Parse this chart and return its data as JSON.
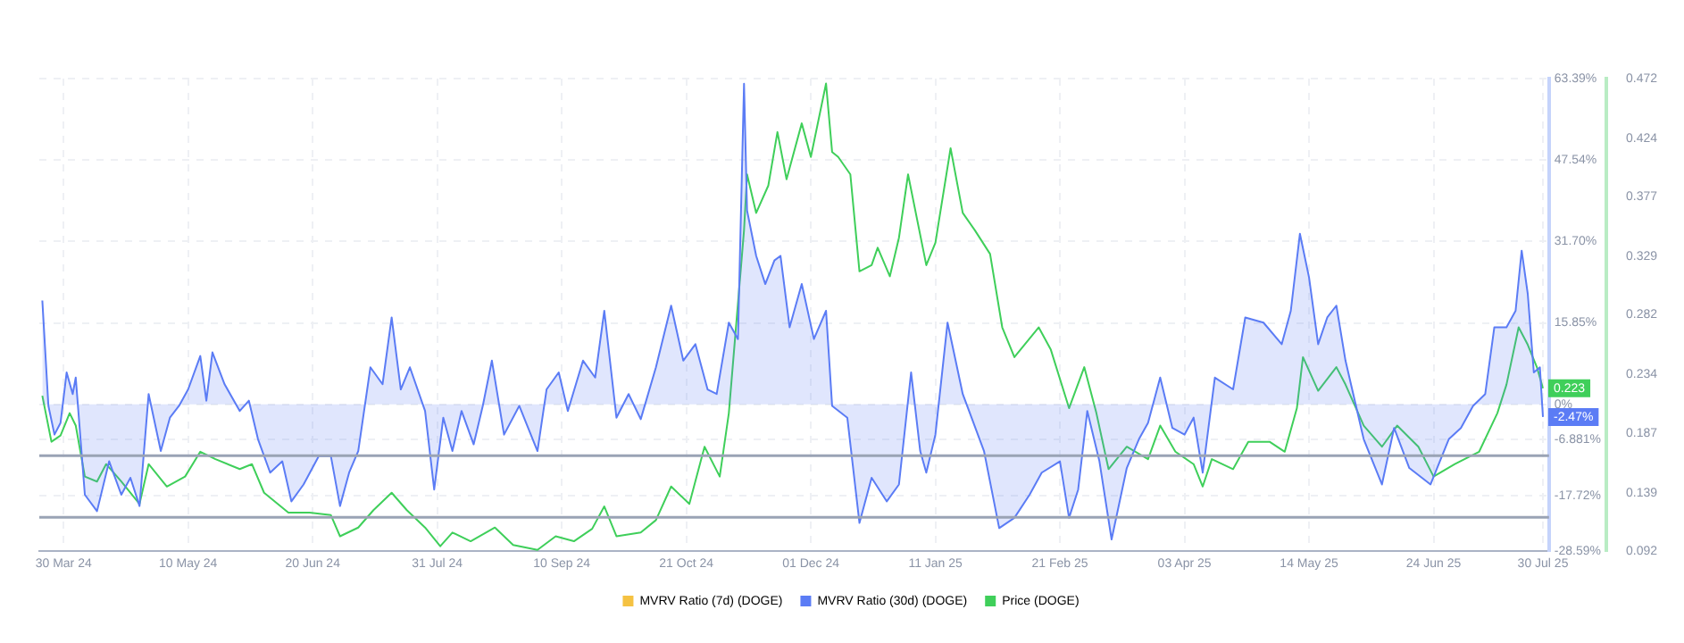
{
  "chart_data": {
    "type": "line",
    "xlim": [
      "2024-03-22",
      "2025-08-01"
    ],
    "xticks": [
      {
        "value": "2024-03-30",
        "label": "30 Mar 24"
      },
      {
        "value": "2024-05-10",
        "label": "10 May 24"
      },
      {
        "value": "2024-06-20",
        "label": "20 Jun 24"
      },
      {
        "value": "2024-07-31",
        "label": "31 Jul 24"
      },
      {
        "value": "2024-09-10",
        "label": "10 Sep 24"
      },
      {
        "value": "2024-10-21",
        "label": "21 Oct 24"
      },
      {
        "value": "2024-12-01",
        "label": "01 Dec 24"
      },
      {
        "value": "2025-01-11",
        "label": "11 Jan 25"
      },
      {
        "value": "2025-02-21",
        "label": "21 Feb 25"
      },
      {
        "value": "2025-04-03",
        "label": "03 Apr 25"
      },
      {
        "value": "2025-05-14",
        "label": "14 May 25"
      },
      {
        "value": "2025-06-24",
        "label": "24 Jun 25"
      },
      {
        "value": "2025-07-30",
        "label": "30 Jul 25"
      }
    ],
    "ylim": [
      -28.59,
      63.39
    ],
    "yticks": [
      {
        "value": -28.59,
        "label": "-28.59%"
      },
      {
        "value": -17.72,
        "label": "-17.72%"
      },
      {
        "value": -6.881,
        "label": "-6.881%"
      },
      {
        "value": 0,
        "label": "0%"
      },
      {
        "value": 15.85,
        "label": "15.85%"
      },
      {
        "value": 31.7,
        "label": "31.70%"
      },
      {
        "value": 47.54,
        "label": "47.54%"
      },
      {
        "value": 63.39,
        "label": "63.39%"
      }
    ],
    "y2lim": [
      0.092,
      0.472
    ],
    "y2ticks": [
      0.092,
      0.139,
      0.187,
      0.234,
      0.282,
      0.329,
      0.377,
      0.424,
      0.472
    ],
    "grid": true,
    "legend": "bottom",
    "marker": "none",
    "ref_lines": [
      {
        "axis": "y",
        "value": -10,
        "color": "#9aa3b5"
      },
      {
        "axis": "y",
        "value": -22,
        "color": "#9aa3b5"
      }
    ],
    "series": [
      {
        "name": "MVRV Ratio (7d) (DOGE)",
        "color": "#f5c242",
        "type": "line",
        "axis": "y"
      },
      {
        "name": "MVRV Ratio (30d) (DOGE)",
        "color": "#5b7cf5",
        "type": "area",
        "axis": "y",
        "x": [
          "2024-03-23",
          "2024-03-25",
          "2024-03-27",
          "2024-03-29",
          "2024-03-31",
          "2024-04-02",
          "2024-04-03",
          "2024-04-06",
          "2024-04-10",
          "2024-04-14",
          "2024-04-18",
          "2024-04-21",
          "2024-04-24",
          "2024-04-27",
          "2024-05-01",
          "2024-05-04",
          "2024-05-07",
          "2024-05-10",
          "2024-05-14",
          "2024-05-16",
          "2024-05-18",
          "2024-05-22",
          "2024-05-27",
          "2024-05-30",
          "2024-06-02",
          "2024-06-06",
          "2024-06-10",
          "2024-06-13",
          "2024-06-17",
          "2024-06-22",
          "2024-06-26",
          "2024-06-29",
          "2024-07-02",
          "2024-07-05",
          "2024-07-09",
          "2024-07-13",
          "2024-07-16",
          "2024-07-19",
          "2024-07-22",
          "2024-07-27",
          "2024-07-30",
          "2024-08-02",
          "2024-08-05",
          "2024-08-08",
          "2024-08-12",
          "2024-08-15",
          "2024-08-18",
          "2024-08-22",
          "2024-08-27",
          "2024-09-02",
          "2024-09-05",
          "2024-09-09",
          "2024-09-12",
          "2024-09-17",
          "2024-09-21",
          "2024-09-24",
          "2024-09-28",
          "2024-10-02",
          "2024-10-06",
          "2024-10-11",
          "2024-10-16",
          "2024-10-20",
          "2024-10-24",
          "2024-10-28",
          "2024-10-31",
          "2024-11-04",
          "2024-11-07",
          "2024-11-09",
          "2024-11-10",
          "2024-11-13",
          "2024-11-16",
          "2024-11-19",
          "2024-11-21",
          "2024-11-24",
          "2024-11-28",
          "2024-12-02",
          "2024-12-06",
          "2024-12-08",
          "2024-12-13",
          "2024-12-17",
          "2024-12-21",
          "2024-12-26",
          "2024-12-30",
          "2025-01-03",
          "2025-01-06",
          "2025-01-08",
          "2025-01-11",
          "2025-01-15",
          "2025-01-20",
          "2025-01-27",
          "2025-02-01",
          "2025-02-06",
          "2025-02-11",
          "2025-02-15",
          "2025-02-21",
          "2025-02-24",
          "2025-02-27",
          "2025-03-02",
          "2025-03-06",
          "2025-03-10",
          "2025-03-15",
          "2025-03-19",
          "2025-03-22",
          "2025-03-26",
          "2025-03-30",
          "2025-04-03",
          "2025-04-06",
          "2025-04-09",
          "2025-04-13",
          "2025-04-19",
          "2025-04-23",
          "2025-04-29",
          "2025-05-05",
          "2025-05-08",
          "2025-05-11",
          "2025-05-14",
          "2025-05-17",
          "2025-05-20",
          "2025-05-23",
          "2025-05-26",
          "2025-06-01",
          "2025-06-07",
          "2025-06-11",
          "2025-06-16",
          "2025-06-23",
          "2025-06-29",
          "2025-07-03",
          "2025-07-07",
          "2025-07-11",
          "2025-07-14",
          "2025-07-18",
          "2025-07-21",
          "2025-07-23",
          "2025-07-25",
          "2025-07-27",
          "2025-07-29",
          "2025-07-30"
        ],
        "values": [
          20.2,
          -0.3,
          -5.9,
          -3.6,
          6.2,
          2.0,
          5.2,
          -17.6,
          -20.8,
          -11.1,
          -17.6,
          -14.3,
          -19.8,
          2.0,
          -9.1,
          -2.6,
          -0.3,
          2.9,
          9.4,
          0.7,
          10.1,
          3.9,
          -1.3,
          0.7,
          -6.8,
          -13.3,
          -11.1,
          -18.9,
          -15.6,
          -10.1,
          -10.1,
          -19.8,
          -13.3,
          -9.1,
          7.2,
          3.9,
          16.9,
          2.9,
          7.2,
          -1.3,
          -16.6,
          -2.6,
          -9.1,
          -1.3,
          -7.8,
          -0.3,
          8.5,
          -5.9,
          -0.3,
          -9.1,
          2.9,
          6.2,
          -1.3,
          8.5,
          5.2,
          18.2,
          -2.6,
          2.0,
          -2.9,
          7.2,
          19.2,
          8.5,
          11.7,
          2.9,
          2.0,
          15.9,
          12.7,
          62.4,
          37.7,
          28.9,
          23.4,
          28.0,
          28.9,
          15.0,
          23.4,
          12.7,
          18.2,
          -0.3,
          -2.6,
          -23.1,
          -14.3,
          -18.9,
          -15.6,
          6.2,
          -9.1,
          -13.3,
          -5.9,
          15.9,
          2.0,
          -9.1,
          -24.1,
          -22.1,
          -17.6,
          -13.3,
          -11.1,
          -22.1,
          -16.6,
          -1.3,
          -11.1,
          -26.3,
          -12.4,
          -6.8,
          -3.6,
          5.2,
          -4.6,
          -5.9,
          -2.6,
          -13.3,
          5.2,
          2.9,
          16.9,
          15.9,
          11.7,
          18.2,
          33.2,
          24.7,
          11.7,
          16.9,
          19.2,
          8.5,
          -6.8,
          -15.6,
          -4.6,
          -12.4,
          -15.6,
          -6.8,
          -4.6,
          -0.3,
          2.0,
          15.0,
          15.0,
          18.2,
          29.9,
          21.5,
          6.2,
          7.2,
          -2.47
        ],
        "value_labels": [
          null,
          null,
          null,
          null,
          null,
          null,
          null,
          null,
          null,
          null,
          null,
          null,
          null,
          null,
          null,
          null,
          null,
          null,
          null,
          null,
          null,
          null,
          null,
          null,
          null,
          null,
          null,
          null,
          null,
          null,
          null,
          null,
          null,
          null,
          null,
          null,
          null,
          null,
          null,
          null,
          null,
          null,
          null,
          null,
          null,
          null,
          null,
          null,
          null,
          null,
          null,
          null,
          null,
          null,
          null,
          null,
          null,
          null,
          null,
          null,
          null,
          null,
          null,
          null,
          null,
          null,
          null,
          null,
          null,
          null,
          null,
          null,
          null,
          null,
          null,
          null,
          null,
          null,
          null,
          null,
          null,
          null,
          null,
          null,
          null,
          null,
          null,
          null,
          null,
          null,
          null,
          null,
          null,
          null,
          null,
          null,
          null,
          null,
          null,
          null,
          null,
          null,
          null,
          null,
          null,
          null,
          null,
          null,
          null,
          null,
          null,
          null,
          null,
          null,
          null,
          null,
          null,
          null,
          null,
          null,
          null,
          null,
          null,
          null,
          null,
          null,
          null,
          null,
          null,
          null,
          null,
          null,
          null,
          null,
          null,
          null,
          "-2.47%"
        ]
      },
      {
        "name": "Price (DOGE)",
        "color": "#3fcf5a",
        "type": "line",
        "axis": "y2",
        "x": [
          "2024-03-23",
          "2024-03-26",
          "2024-03-29",
          "2024-04-01",
          "2024-04-03",
          "2024-04-06",
          "2024-04-10",
          "2024-04-13",
          "2024-04-18",
          "2024-04-24",
          "2024-04-27",
          "2024-05-03",
          "2024-05-09",
          "2024-05-14",
          "2024-05-19",
          "2024-05-27",
          "2024-05-31",
          "2024-06-04",
          "2024-06-12",
          "2024-06-19",
          "2024-06-26",
          "2024-06-29",
          "2024-07-05",
          "2024-07-10",
          "2024-07-16",
          "2024-07-21",
          "2024-07-27",
          "2024-08-01",
          "2024-08-05",
          "2024-08-11",
          "2024-08-19",
          "2024-08-25",
          "2024-09-02",
          "2024-09-08",
          "2024-09-14",
          "2024-09-20",
          "2024-09-24",
          "2024-09-28",
          "2024-10-06",
          "2024-10-11",
          "2024-10-16",
          "2024-10-22",
          "2024-10-27",
          "2024-11-01",
          "2024-11-04",
          "2024-11-09",
          "2024-11-10",
          "2024-11-13",
          "2024-11-17",
          "2024-11-20",
          "2024-11-23",
          "2024-11-28",
          "2024-12-01",
          "2024-12-06",
          "2024-12-08",
          "2024-12-10",
          "2024-12-14",
          "2024-12-17",
          "2024-12-21",
          "2024-12-23",
          "2024-12-27",
          "2024-12-30",
          "2025-01-02",
          "2025-01-08",
          "2025-01-11",
          "2025-01-16",
          "2025-01-20",
          "2025-01-24",
          "2025-01-29",
          "2025-02-02",
          "2025-02-06",
          "2025-02-14",
          "2025-02-18",
          "2025-02-24",
          "2025-03-01",
          "2025-03-05",
          "2025-03-09",
          "2025-03-15",
          "2025-03-22",
          "2025-03-26",
          "2025-03-31",
          "2025-04-06",
          "2025-04-09",
          "2025-04-12",
          "2025-04-19",
          "2025-04-24",
          "2025-05-01",
          "2025-05-06",
          "2025-05-10",
          "2025-05-12",
          "2025-05-17",
          "2025-05-23",
          "2025-05-26",
          "2025-06-01",
          "2025-06-07",
          "2025-06-12",
          "2025-06-19",
          "2025-06-24",
          "2025-07-01",
          "2025-07-09",
          "2025-07-15",
          "2025-07-18",
          "2025-07-22",
          "2025-07-25",
          "2025-07-28",
          "2025-07-30"
        ],
        "values": [
          0.217,
          0.18,
          0.185,
          0.203,
          0.193,
          0.152,
          0.148,
          0.162,
          0.148,
          0.13,
          0.162,
          0.144,
          0.152,
          0.172,
          0.166,
          0.158,
          0.162,
          0.139,
          0.123,
          0.123,
          0.121,
          0.104,
          0.111,
          0.125,
          0.139,
          0.125,
          0.111,
          0.096,
          0.107,
          0.1,
          0.111,
          0.097,
          0.093,
          0.104,
          0.1,
          0.11,
          0.128,
          0.104,
          0.107,
          0.117,
          0.144,
          0.13,
          0.176,
          0.152,
          0.203,
          0.35,
          0.395,
          0.364,
          0.386,
          0.429,
          0.391,
          0.436,
          0.409,
          0.468,
          0.413,
          0.409,
          0.395,
          0.317,
          0.322,
          0.336,
          0.313,
          0.344,
          0.395,
          0.322,
          0.34,
          0.416,
          0.364,
          0.35,
          0.331,
          0.272,
          0.248,
          0.272,
          0.254,
          0.207,
          0.24,
          0.203,
          0.158,
          0.176,
          0.166,
          0.193,
          0.172,
          0.162,
          0.144,
          0.166,
          0.158,
          0.18,
          0.18,
          0.172,
          0.207,
          0.248,
          0.221,
          0.24,
          0.226,
          0.193,
          0.176,
          0.193,
          0.176,
          0.152,
          0.162,
          0.172,
          0.203,
          0.226,
          0.272,
          0.258,
          0.24,
          0.223
        ],
        "value_labels": [
          null,
          null,
          null,
          null,
          null,
          null,
          null,
          null,
          null,
          null,
          null,
          null,
          null,
          null,
          null,
          null,
          null,
          null,
          null,
          null,
          null,
          null,
          null,
          null,
          null,
          null,
          null,
          null,
          null,
          null,
          null,
          null,
          null,
          null,
          null,
          null,
          null,
          null,
          null,
          null,
          null,
          null,
          null,
          null,
          null,
          null,
          null,
          null,
          null,
          null,
          null,
          null,
          null,
          null,
          null,
          null,
          null,
          null,
          null,
          null,
          null,
          null,
          null,
          null,
          null,
          null,
          null,
          null,
          null,
          null,
          null,
          null,
          null,
          null,
          null,
          null,
          null,
          null,
          null,
          null,
          null,
          null,
          null,
          null,
          null,
          null,
          null,
          null,
          null,
          null,
          null,
          null,
          null,
          null,
          null,
          null,
          null,
          null,
          null,
          null,
          null,
          null,
          null,
          null,
          null,
          "0.223"
        ]
      }
    ]
  }
}
